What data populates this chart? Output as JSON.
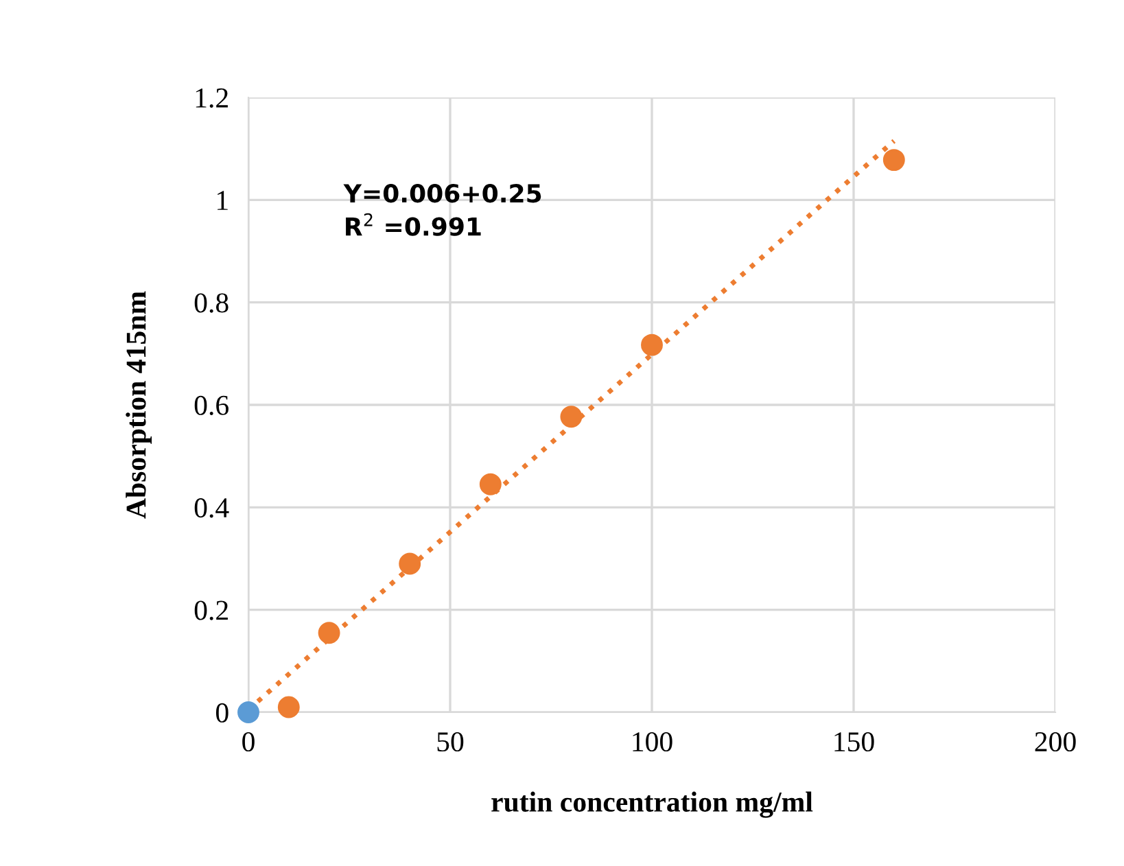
{
  "chart_data": {
    "type": "scatter",
    "xlabel": "rutin concentration mg/ml",
    "ylabel": "Absorption 415nm",
    "annotations": [
      "Y=0.006+0.25\nR$^{2}$ =0.991"
    ],
    "series": [
      {
        "color": "#5b9bd5",
        "x": [
          0
        ],
        "values": [
          0
        ]
      },
      {
        "color": "#ed7d31",
        "x": [
          10,
          20,
          40,
          60,
          80,
          100,
          160
        ],
        "values": [
          0.01,
          0.155,
          0.29,
          0.445,
          0.577,
          0.717,
          1.078
        ]
      },
      {
        "type": "line",
        "color": "#ed7d31",
        "line_style": "dotted",
        "marker": "none",
        "x": [
          0,
          160
        ],
        "values": [
          0.005,
          1.115
        ]
      }
    ],
    "xlim": [
      0,
      200
    ],
    "xticks": [
      0,
      50,
      100,
      150,
      200
    ],
    "ylim": [
      0,
      1.2
    ],
    "yticks": [
      0,
      0.2,
      0.4,
      0.6,
      0.8,
      1,
      1.2
    ],
    "grid": true,
    "marker": "circle"
  }
}
